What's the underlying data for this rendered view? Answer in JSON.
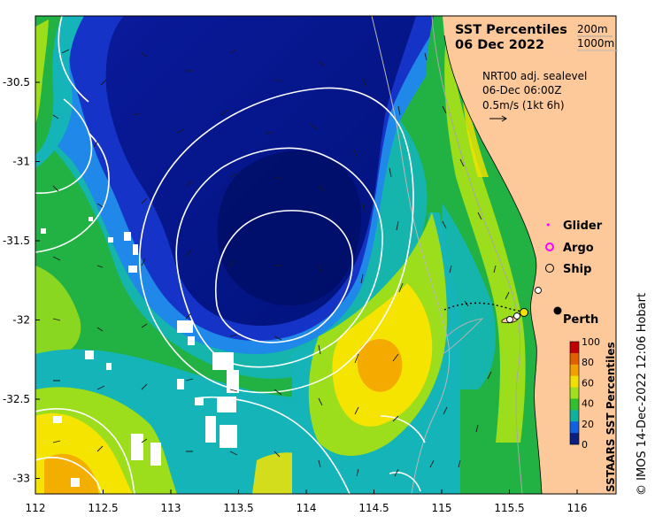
{
  "title": {
    "line1": "SST Percentiles",
    "line2": "06 Dec 2022"
  },
  "contour_legend": {
    "items": [
      "200m",
      "1000m"
    ]
  },
  "current_info": {
    "line1": "NRT00 adj. sealevel",
    "line2": "06-Dec 06:00Z",
    "line3": "0.5m/s (1kt 6h)"
  },
  "marker_legend": {
    "glider": "Glider",
    "argo": "Argo",
    "ship": "Ship"
  },
  "city_label": "Perth",
  "axes": {
    "x_ticks": [
      "112",
      "112.5",
      "113",
      "113.5",
      "114",
      "114.5",
      "115",
      "115.5",
      "116"
    ],
    "y_ticks": [
      "-30.5",
      "-31",
      "-31.5",
      "-32",
      "-32.5",
      "-33"
    ]
  },
  "colorbar": {
    "title": "SSTAARS SST Percentiles",
    "ticks": [
      "100",
      "80",
      "60",
      "40",
      "20",
      "0"
    ],
    "colors": [
      "#c00000",
      "#e06000",
      "#f0a000",
      "#f0e000",
      "#a0e020",
      "#30c030",
      "#10b0a0",
      "#1060e0",
      "#0a2080"
    ]
  },
  "credit": "© IMOS 14-Dec-2022 12:06 Hobart",
  "palette": {
    "land": "#fdc99a",
    "deep_blue": "#00127a",
    "blue": "#1633c8",
    "light_blue": "#1f88e8",
    "cyan": "#14b4b8",
    "green": "#22b244",
    "lime": "#9cdd1c",
    "yellow": "#f4e400",
    "orange": "#f4a000"
  }
}
